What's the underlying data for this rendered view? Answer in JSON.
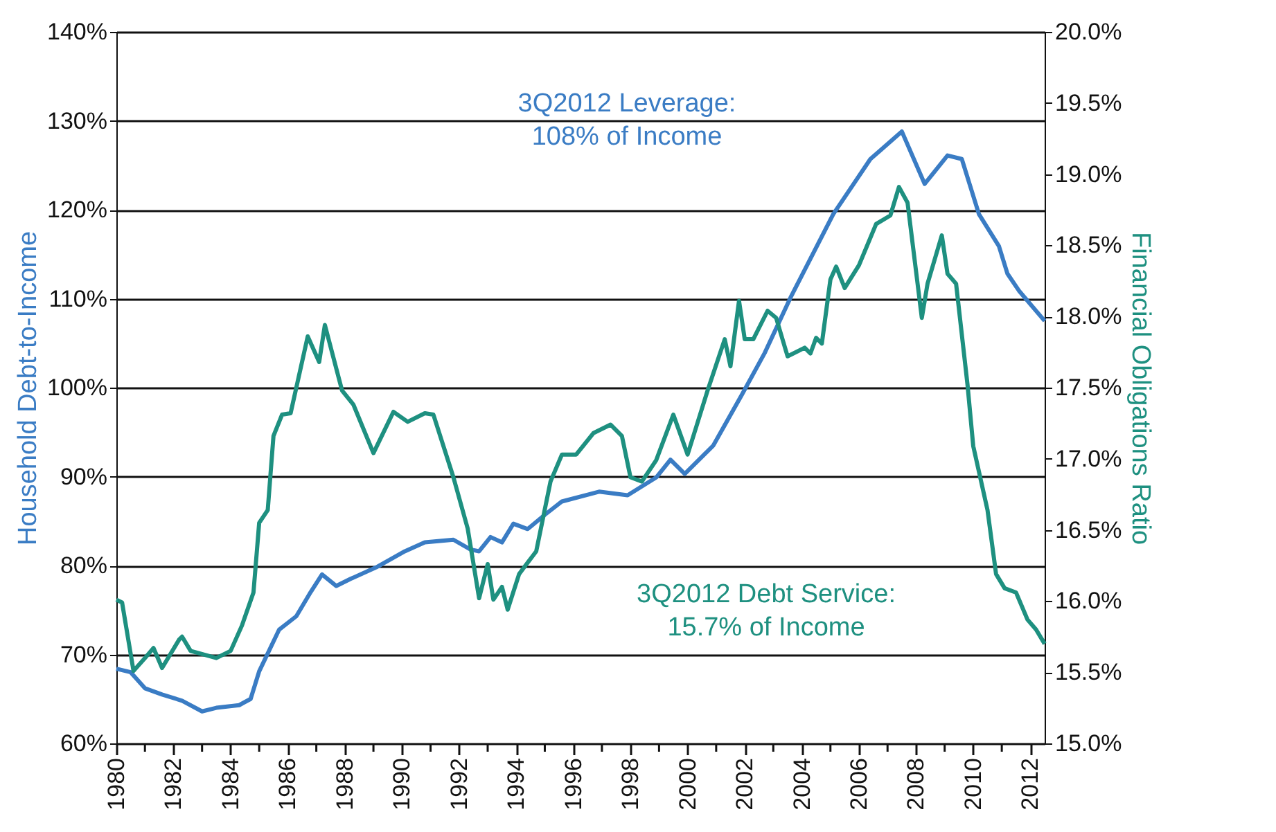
{
  "chart_data": {
    "type": "line",
    "ylabel": "Household Debt-to-Income",
    "y2label": "Financial Obligations Ratio",
    "xlim": [
      1980,
      2012.5
    ],
    "xticks": [
      1980,
      {
        "value": 1981,
        "label": null
      },
      1982,
      {
        "value": 1983,
        "label": null
      },
      1984,
      {
        "value": 1985,
        "label": null
      },
      1986,
      {
        "value": 1987,
        "label": null
      },
      1988,
      {
        "value": 1989,
        "label": null
      },
      1990,
      {
        "value": 1991,
        "label": null
      },
      1992,
      {
        "value": 1993,
        "label": null
      },
      1994,
      {
        "value": 1995,
        "label": null
      },
      1996,
      {
        "value": 1997,
        "label": null
      },
      1998,
      {
        "value": 1999,
        "label": null
      },
      2000,
      {
        "value": 2001,
        "label": null
      },
      2002,
      {
        "value": 2003,
        "label": null
      },
      2004,
      {
        "value": 2005,
        "label": null
      },
      2006,
      {
        "value": 2007,
        "label": null
      },
      2008,
      {
        "value": 2009,
        "label": null
      },
      2010,
      {
        "value": 2011,
        "label": null
      },
      2012
    ],
    "ylim": [
      60,
      140
    ],
    "yticks": [
      {
        "value": 60,
        "label": "60%"
      },
      {
        "value": 70,
        "label": "70%"
      },
      {
        "value": 80,
        "label": "80%"
      },
      {
        "value": 90,
        "label": "90%"
      },
      {
        "value": 100,
        "label": "100%"
      },
      {
        "value": 110,
        "label": "110%"
      },
      {
        "value": 120,
        "label": "120%"
      },
      {
        "value": 130,
        "label": "130%"
      },
      {
        "value": 140,
        "label": "140%"
      }
    ],
    "y2lim": [
      15,
      20
    ],
    "y2ticks": [
      {
        "value": 15,
        "label": "15.0%"
      },
      {
        "value": 15.5,
        "label": "15.5%"
      },
      {
        "value": 16,
        "label": "16.0%"
      },
      {
        "value": 16.5,
        "label": "16.5%"
      },
      {
        "value": 17,
        "label": "17.0%"
      },
      {
        "value": 17.5,
        "label": "17.5%"
      },
      {
        "value": 18,
        "label": "18.0%"
      },
      {
        "value": 18.5,
        "label": "18.5%"
      },
      {
        "value": 19,
        "label": "19.0%"
      },
      {
        "value": 19.5,
        "label": "19.5%"
      },
      {
        "value": 20,
        "label": "20.0%"
      }
    ],
    "grid": "y",
    "annotations": [
      "3Q2012 Leverage:\n108% of Income",
      "3Q2012 Debt Service:\n15.7% of Income"
    ],
    "series": [
      {
        "color": "#3a7cc4",
        "x": [
          1980.0,
          1980.5,
          1981.0,
          1981.6,
          1982.3,
          1983.0,
          1983.5,
          1984.3,
          1984.7,
          1985.0,
          1985.7,
          1986.3,
          1986.8,
          1987.2,
          1987.7,
          1988.2,
          1989.1,
          1990.1,
          1990.8,
          1991.8,
          1992.4,
          1992.7,
          1993.1,
          1993.5,
          1993.9,
          1994.4,
          1995.0,
          1995.6,
          1996.9,
          1997.9,
          1998.9,
          1999.4,
          1999.9,
          2000.9,
          2001.9,
          2002.7,
          2003.6,
          2005.1,
          2006.4,
          2007.5,
          2008.3,
          2009.1,
          2009.6,
          2010.2,
          2010.9,
          2011.2,
          2011.6,
          2012.5
        ],
        "values": [
          68.4,
          68.0,
          66.2,
          65.5,
          64.8,
          63.6,
          64.0,
          64.3,
          65.0,
          68.1,
          72.8,
          74.3,
          77.0,
          79.0,
          77.7,
          78.5,
          79.8,
          81.6,
          82.6,
          82.9,
          81.8,
          81.6,
          83.2,
          82.6,
          84.7,
          84.1,
          85.7,
          87.2,
          88.3,
          87.9,
          89.9,
          91.9,
          90.3,
          93.5,
          99.2,
          103.9,
          110.1,
          119.5,
          125.7,
          128.8,
          122.9,
          126.1,
          125.7,
          119.5,
          115.9,
          112.8,
          110.9,
          107.5
        ]
      },
      {
        "color": "#1e9080",
        "axis": "y2",
        "x": [
          1980.0,
          1980.2,
          1980.6,
          1981.0,
          1981.3,
          1981.6,
          1982.2,
          1982.3,
          1982.6,
          1983.5,
          1984.0,
          1984.4,
          1984.8,
          1985.0,
          1985.3,
          1985.5,
          1985.8,
          1986.1,
          1986.7,
          1987.1,
          1987.3,
          1987.9,
          1988.3,
          1989.0,
          1989.7,
          1990.2,
          1990.8,
          1991.1,
          1991.8,
          1992.3,
          1992.7,
          1993.0,
          1993.2,
          1993.5,
          1993.7,
          1994.1,
          1994.7,
          1995.2,
          1995.6,
          1996.1,
          1996.7,
          1997.3,
          1997.7,
          1998.0,
          1998.4,
          1998.9,
          1999.5,
          2000.0,
          2000.7,
          2001.3,
          2001.5,
          2001.8,
          2002.0,
          2002.3,
          2002.8,
          2003.1,
          2003.5,
          2004.1,
          2004.3,
          2004.5,
          2004.7,
          2005.0,
          2005.2,
          2005.5,
          2006.0,
          2006.6,
          2007.1,
          2007.4,
          2007.7,
          2008.2,
          2008.4,
          2008.9,
          2009.1,
          2009.4,
          2009.8,
          2010.0,
          2010.5,
          2010.8,
          2011.1,
          2011.5,
          2011.9,
          2012.2,
          2012.5
        ],
        "values": [
          16.01,
          15.99,
          15.51,
          15.6,
          15.67,
          15.53,
          15.73,
          15.75,
          15.65,
          15.6,
          15.65,
          15.83,
          16.06,
          16.55,
          16.64,
          17.16,
          17.31,
          17.32,
          17.86,
          17.68,
          17.94,
          17.48,
          17.38,
          17.04,
          17.33,
          17.26,
          17.32,
          17.31,
          16.87,
          16.51,
          16.02,
          16.26,
          16.01,
          16.1,
          15.94,
          16.19,
          16.35,
          16.84,
          17.03,
          17.03,
          17.18,
          17.24,
          17.16,
          16.87,
          16.84,
          16.99,
          17.31,
          17.03,
          17.48,
          17.84,
          17.65,
          18.11,
          17.84,
          17.84,
          18.04,
          17.99,
          17.72,
          17.78,
          17.74,
          17.85,
          17.81,
          18.26,
          18.35,
          18.2,
          18.36,
          18.65,
          18.71,
          18.91,
          18.8,
          17.99,
          18.23,
          18.57,
          18.3,
          18.23,
          17.52,
          17.09,
          16.64,
          16.19,
          16.09,
          16.06,
          15.87,
          15.8,
          15.7
        ]
      }
    ]
  }
}
